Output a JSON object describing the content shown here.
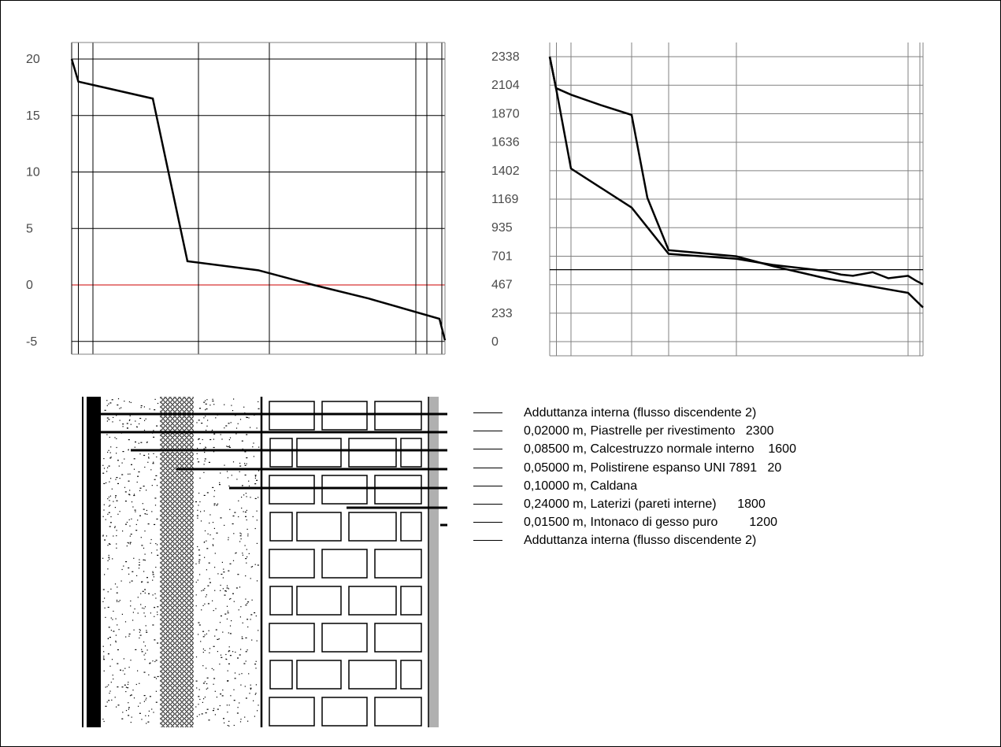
{
  "chart_data": [
    {
      "type": "line",
      "yticks": [
        "20",
        "15",
        "10",
        "5",
        "0",
        "-5"
      ],
      "ylim": [
        -5,
        20
      ],
      "x_boundaries": [
        0,
        2,
        20,
        105,
        190,
        455,
        470
      ],
      "layer_lines": [
        0,
        8.5,
        27,
        161,
        251,
        437,
        451,
        470
      ],
      "series": [
        {
          "x": [
            0,
            8.5,
            103,
            147,
            237,
            307,
            377,
            467,
            474
          ],
          "y": [
            20.0,
            18.0,
            16.5,
            2.1,
            1.3,
            0.0,
            -1.2,
            -3.0,
            -4.9
          ]
        }
      ],
      "reference_line": {
        "y": 0,
        "color": "#cc0000"
      },
      "grid": true
    },
    {
      "type": "line",
      "yticks": [
        "2338",
        "2104",
        "1870",
        "1636",
        "1402",
        "1169",
        "935",
        "701",
        "467",
        "233",
        "0"
      ],
      "ylim": [
        0,
        2338
      ],
      "layer_lines": [
        0,
        8.5,
        27,
        104,
        151,
        237,
        455,
        470
      ],
      "series": [
        {
          "x": [
            0,
            8,
            27,
            65,
            104,
            124,
            151,
            237,
            283,
            350,
            455,
            474
          ],
          "y": [
            2338,
            2080,
            2026,
            1940,
            1860,
            1180,
            750,
            700,
            620,
            520,
            400,
            280
          ]
        },
        {
          "x": [
            0,
            8,
            27,
            104,
            151,
            237,
            283,
            350,
            370,
            385,
            410,
            430,
            455,
            465,
            474
          ],
          "y": [
            2338,
            2080,
            1420,
            1100,
            720,
            680,
            630,
            580,
            550,
            540,
            570,
            520,
            540,
            500,
            470
          ]
        },
        {
          "x": [
            0,
            474
          ],
          "y": [
            590,
            590
          ]
        }
      ],
      "grid": true
    }
  ],
  "legend": {
    "items": [
      "Adduttanza interna (flusso discendente 2)",
      "0,02000 m, Piastrelle per rivestimento   2300",
      "0,08500 m, Calcestruzzo normale interno    1600",
      "0,05000 m, Polistirene espanso UNI 7891   20",
      "0,10000 m, Caldana",
      "0,24000 m, Laterizi (pareti interne)      1800",
      "0,01500 m, Intonaco di gesso puro         1200",
      "Adduttanza interna (flusso discendente 2)"
    ]
  },
  "wall_section": {
    "layers": [
      "Piastrelle per rivestimento",
      "Calcestruzzo normale interno",
      "Polistirene espanso UNI 7891",
      "Caldana",
      "Laterizi (pareti interne)",
      "Intonaco di gesso puro"
    ],
    "colors": {
      "tile": "#000000",
      "insulation": "#ffffff",
      "plaster": "#b0b0b0"
    }
  }
}
